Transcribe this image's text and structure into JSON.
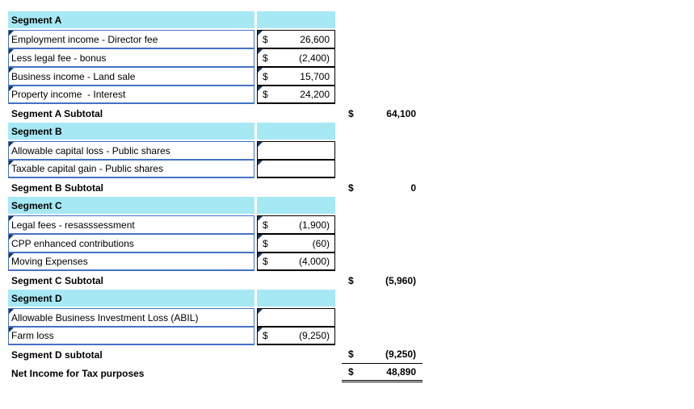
{
  "colors": {
    "segment_header_bg": "#A6E9F5",
    "label_cell_border": "#4472C4",
    "value_cell_border": "#000000",
    "corner_mark": "#17375E",
    "text": "#000000",
    "background": "#FFFFFF"
  },
  "icons": {
    "cell_corner_mark": "small dark triangle at top-left of cell"
  },
  "segments": [
    {
      "header": "Segment A",
      "rows": [
        {
          "label": "Employment income - Director fee",
          "cur": "$",
          "amount": "26,600"
        },
        {
          "label": "Less legal fee - bonus",
          "cur": "$",
          "amount": "(2,400)"
        },
        {
          "label": "Business income - Land sale",
          "cur": "$",
          "amount": "15,700"
        },
        {
          "label": "Property income  - Interest",
          "cur": "$",
          "amount": "24,200"
        }
      ],
      "subtotal": {
        "label": "Segment A Subtotal",
        "cur": "$",
        "amount": "64,100"
      }
    },
    {
      "header": "Segment B",
      "rows": [
        {
          "label": "Allowable capital loss - Public shares",
          "cur": "",
          "amount": ""
        },
        {
          "label": "Taxable capital gain - Public shares",
          "cur": "",
          "amount": ""
        }
      ],
      "subtotal": {
        "label": "Segment B Subtotal",
        "cur": "$",
        "amount": "0"
      }
    },
    {
      "header": "Segment C",
      "rows": [
        {
          "label": "Legal fees - resasssessment",
          "cur": "$",
          "amount": "(1,900)"
        },
        {
          "label": "CPP enhanced contributions",
          "cur": "$",
          "amount": "(60)"
        },
        {
          "label": "Moving Expenses",
          "cur": "$",
          "amount": "(4,000)"
        }
      ],
      "subtotal": {
        "label": "Segment C Subtotal",
        "cur": "$",
        "amount": "(5,960)"
      }
    },
    {
      "header": "Segment D",
      "rows": [
        {
          "label": "Allowable Business Investment Loss (ABIL)",
          "cur": "",
          "amount": ""
        },
        {
          "label": "Farm loss",
          "cur": "$",
          "amount": "(9,250)"
        }
      ],
      "subtotal": {
        "label": "Segment D subtotal",
        "cur": "$",
        "amount": "(9,250)"
      }
    }
  ],
  "net_income": {
    "label": "Net Income for Tax purposes",
    "cur": "$",
    "amount": "48,890"
  }
}
